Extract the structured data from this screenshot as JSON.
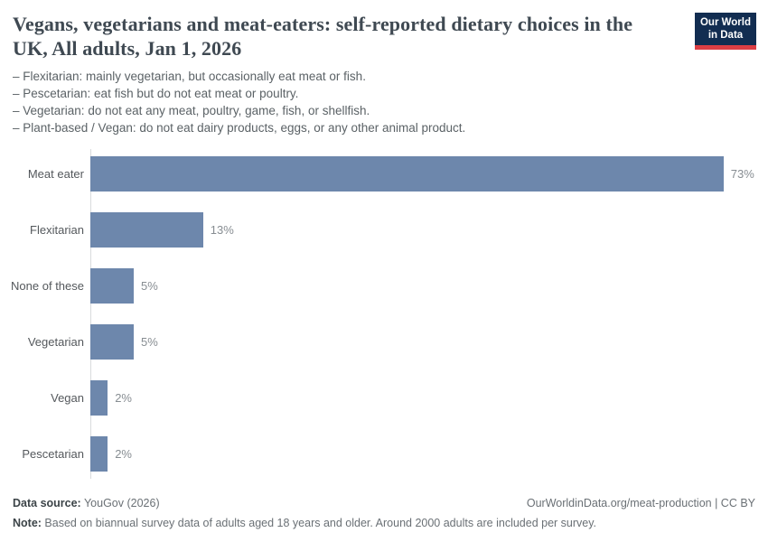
{
  "header": {
    "title": "Vegans, vegetarians and meat-eaters: self-reported dietary choices in the UK, All adults, Jan 1, 2026",
    "definitions": [
      "– Flexitarian: mainly vegetarian, but occasionally eat meat or fish.",
      "– Pescetarian: eat fish but do not eat meat or poultry.",
      "– Vegetarian: do not eat any meat, poultry, game, fish, or shellfish.",
      "– Plant-based / Vegan: do not eat dairy products, eggs, or any other animal product."
    ]
  },
  "logo": {
    "line1": "Our World",
    "line2": "in Data",
    "bg_color": "#122d51",
    "accent_color": "#dc3e44"
  },
  "chart_data": {
    "type": "bar",
    "orientation": "horizontal",
    "title": "Vegans, vegetarians and meat-eaters: self-reported dietary choices in the UK, All adults, Jan 1, 2026",
    "categories": [
      "Meat eater",
      "Flexitarian",
      "None of these",
      "Vegetarian",
      "Vegan",
      "Pescetarian"
    ],
    "values": [
      73,
      13,
      5,
      5,
      2,
      2
    ],
    "value_labels": [
      "73%",
      "13%",
      "5%",
      "5%",
      "2%",
      "2%"
    ],
    "unit": "%",
    "xlim": [
      0,
      73
    ],
    "bar_color": "#6d87ac",
    "grid": false,
    "x_axis_visible": false,
    "legend": "none",
    "value_label_position": "right-of-bar"
  },
  "footer": {
    "source_label": "Data source:",
    "source_value": " YouGov (2026)",
    "link": "OurWorldinData.org/meat-production | CC BY",
    "note_label": "Note:",
    "note_value": " Based on biannual survey data of adults aged 18 years and older. Around 2000 adults are included per survey."
  }
}
